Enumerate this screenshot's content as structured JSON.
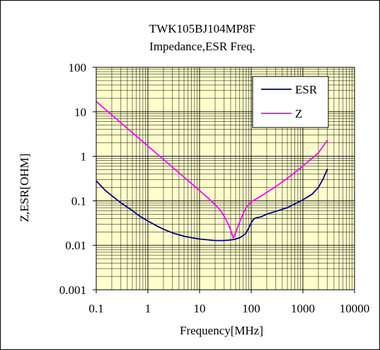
{
  "chart_data": {
    "type": "line",
    "title": "TWK105BJ104MP8F",
    "subtitle": "Impedance,ESR Freq.",
    "xlabel": "Frequency[MHz]",
    "ylabel": "Z,ESR[OHM]",
    "xscale": "log",
    "yscale": "log",
    "xlim": [
      0.1,
      10000
    ],
    "ylim": [
      0.001,
      100
    ],
    "xticks": [
      "0.1",
      "1",
      "10",
      "100",
      "1000",
      "10000"
    ],
    "yticks": [
      "0.001",
      "0.01",
      "0.1",
      "1",
      "10",
      "100"
    ],
    "grid": true,
    "background_color": "#FFFFCC",
    "legend_position": "top-right",
    "series": [
      {
        "name": "ESR",
        "color": "#000080",
        "x": [
          0.1,
          0.15,
          0.2,
          0.3,
          0.5,
          0.7,
          1,
          1.5,
          2,
          3,
          5,
          7,
          10,
          15,
          20,
          30,
          40,
          45,
          50,
          60,
          70,
          80,
          90,
          100,
          110,
          120,
          130,
          150,
          200,
          300,
          500,
          700,
          1000,
          1500,
          2000,
          2500,
          3000
        ],
        "values": [
          0.28,
          0.17,
          0.13,
          0.09,
          0.06,
          0.045,
          0.035,
          0.027,
          0.023,
          0.019,
          0.016,
          0.0148,
          0.0138,
          0.0132,
          0.0128,
          0.0128,
          0.0132,
          0.0134,
          0.0138,
          0.0148,
          0.0165,
          0.019,
          0.025,
          0.032,
          0.038,
          0.041,
          0.042,
          0.043,
          0.05,
          0.058,
          0.07,
          0.085,
          0.105,
          0.14,
          0.2,
          0.32,
          0.52
        ]
      },
      {
        "name": "Z",
        "color": "#FF00FF",
        "x": [
          0.1,
          0.2,
          0.5,
          1,
          2,
          5,
          10,
          15,
          20,
          25,
          30,
          35,
          40,
          43,
          45,
          50,
          60,
          70,
          80,
          100,
          150,
          200,
          300,
          500,
          1000,
          2000,
          3000
        ],
        "values": [
          17,
          8.5,
          3.4,
          1.7,
          0.85,
          0.34,
          0.17,
          0.112,
          0.082,
          0.062,
          0.045,
          0.032,
          0.022,
          0.017,
          0.0145,
          0.019,
          0.034,
          0.052,
          0.07,
          0.095,
          0.125,
          0.155,
          0.21,
          0.32,
          0.6,
          1.2,
          2.3
        ]
      }
    ]
  }
}
